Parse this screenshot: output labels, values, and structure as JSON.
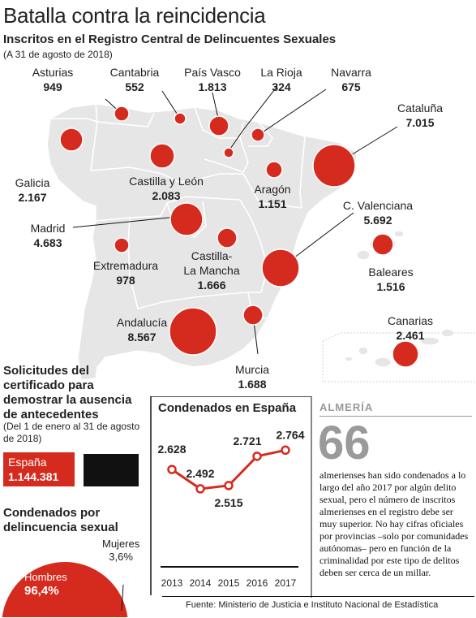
{
  "title": "Batalla contra la reincidencia",
  "subtitle": "Inscritos en el Registro Central de Delincuentes Sexuales",
  "date_note": "(A 31 de agosto de 2018)",
  "colors": {
    "accent": "#d52b1e",
    "map_fill": "#e6e6e6",
    "map_stroke": "#ffffff",
    "muted": "#9a9a9a"
  },
  "chart_data": [
    {
      "type": "bubble-map",
      "title": "Inscritos en el Registro Central de Delincuentes Sexuales",
      "regions": [
        {
          "name": "Asturias",
          "value": "949"
        },
        {
          "name": "Cantabria",
          "value": "552"
        },
        {
          "name": "País Vasco",
          "value": "1.813"
        },
        {
          "name": "La Rioja",
          "value": "324"
        },
        {
          "name": "Navarra",
          "value": "675"
        },
        {
          "name": "Cataluña",
          "value": "7.015"
        },
        {
          "name": "Galicia",
          "value": "2.167"
        },
        {
          "name": "Castilla y León",
          "value": "2.083"
        },
        {
          "name": "Aragón",
          "value": "1.151"
        },
        {
          "name": "C. Valenciana",
          "value": "5.692"
        },
        {
          "name": "Madrid",
          "value": "4.683"
        },
        {
          "name": "Extremadura",
          "value": "978"
        },
        {
          "name": "Castilla-La Mancha",
          "value": "1.666"
        },
        {
          "name": "Baleares",
          "value": "1.516"
        },
        {
          "name": "Andalucía",
          "value": "8.567"
        },
        {
          "name": "Murcia",
          "value": "1.688"
        },
        {
          "name": "Canarias",
          "value": "2.461"
        }
      ]
    },
    {
      "type": "line",
      "title": "Condenados en España",
      "x": [
        "2013",
        "2014",
        "2015",
        "2016",
        "2017"
      ],
      "values": [
        2628,
        2492,
        2515,
        2721,
        2764
      ],
      "labels": [
        "2.628",
        "2.492",
        "2.515",
        "2.721",
        "2.764"
      ],
      "ylim": [
        2400,
        2800
      ]
    },
    {
      "type": "pie",
      "title": "Condenados por delincuencia sexual",
      "slices": [
        {
          "name": "Hombres",
          "value": 96.4,
          "label": "96,4%"
        },
        {
          "name": "Mujeres",
          "value": 3.6,
          "label": "3,6%"
        }
      ]
    }
  ],
  "solicitudes": {
    "title": "Solicitudes del certificado para demostrar la ausencia de antecedentes",
    "date": "(Del 1 de enero al 31 de agosto de 2018)",
    "espana_label": "España",
    "espana_value": "1.144.381"
  },
  "almeria": {
    "heading": "ALMERÍA",
    "number": "66",
    "text": "almerienses han sido condenados a lo largo del año 2017 por algún delito sexual, pero el número de inscritos almerienses en el registro debe ser muy superior. No hay cifras oficiales por provincias –solo por comunidades autónomas– pero en función de la criminalidad por este tipo de delitos deben ser cerca de un millar."
  },
  "source": "Fuente: Ministerio de Justicia e Instituto Nacional de Estadística"
}
